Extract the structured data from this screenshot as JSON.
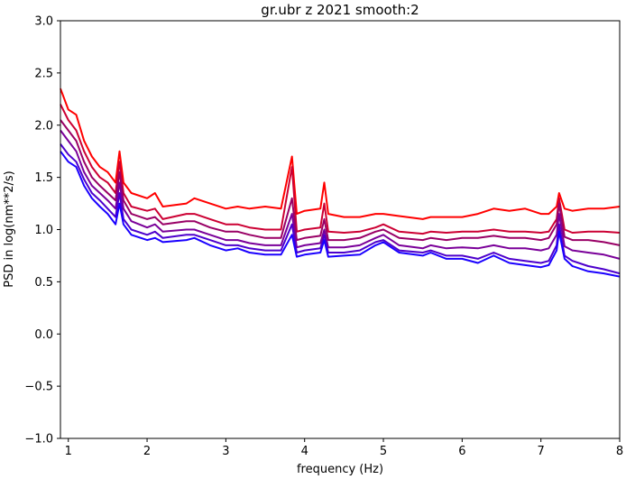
{
  "chart_data": {
    "type": "line",
    "title": "gr.ubr z 2021 smooth:2",
    "xlabel": "frequency (Hz)",
    "ylabel": "PSD in log(nm**2/s)",
    "xlim": [
      0.9,
      8.0
    ],
    "ylim": [
      -1.0,
      3.0
    ],
    "xticks": [
      1,
      2,
      3,
      4,
      5,
      6,
      7,
      8
    ],
    "yticks": [
      -1.0,
      -0.5,
      0.0,
      0.5,
      1.0,
      1.5,
      2.0,
      2.5,
      3.0
    ],
    "ytick_labels": [
      "−1.0",
      "−0.5",
      "0.0",
      "0.5",
      "1.0",
      "1.5",
      "2.0",
      "2.5",
      "3.0"
    ],
    "grid": false,
    "legend": "none",
    "series": [
      {
        "color": "#ff0000",
        "x": [
          0.9,
          1.0,
          1.1,
          1.2,
          1.3,
          1.4,
          1.5,
          1.6,
          1.65,
          1.7,
          1.8,
          2.0,
          2.1,
          2.2,
          2.5,
          2.6,
          2.8,
          3.0,
          3.15,
          3.3,
          3.5,
          3.7,
          3.84,
          3.9,
          4.0,
          4.2,
          4.25,
          4.3,
          4.5,
          4.7,
          4.9,
          5.0,
          5.2,
          5.5,
          5.6,
          5.8,
          6.0,
          6.2,
          6.4,
          6.6,
          6.8,
          7.0,
          7.1,
          7.2,
          7.23,
          7.3,
          7.4,
          7.6,
          7.8,
          8.0
        ],
        "y": [
          2.35,
          2.15,
          2.1,
          1.85,
          1.7,
          1.6,
          1.55,
          1.45,
          1.75,
          1.45,
          1.35,
          1.3,
          1.35,
          1.22,
          1.25,
          1.3,
          1.25,
          1.2,
          1.22,
          1.2,
          1.22,
          1.2,
          1.7,
          1.15,
          1.18,
          1.2,
          1.45,
          1.15,
          1.12,
          1.12,
          1.15,
          1.15,
          1.13,
          1.1,
          1.12,
          1.12,
          1.12,
          1.15,
          1.2,
          1.18,
          1.2,
          1.15,
          1.15,
          1.22,
          1.35,
          1.2,
          1.18,
          1.2,
          1.2,
          1.22
        ]
      },
      {
        "color": "#cc0033",
        "x": [
          0.9,
          1.0,
          1.1,
          1.2,
          1.3,
          1.4,
          1.5,
          1.6,
          1.65,
          1.7,
          1.8,
          2.0,
          2.1,
          2.2,
          2.5,
          2.6,
          2.8,
          3.0,
          3.15,
          3.3,
          3.5,
          3.7,
          3.84,
          3.9,
          4.0,
          4.2,
          4.25,
          4.3,
          4.5,
          4.7,
          4.9,
          5.0,
          5.2,
          5.5,
          5.6,
          5.8,
          6.0,
          6.2,
          6.4,
          6.6,
          6.8,
          7.0,
          7.1,
          7.2,
          7.23,
          7.3,
          7.4,
          7.6,
          7.8,
          8.0
        ],
        "y": [
          2.2,
          2.05,
          1.95,
          1.75,
          1.6,
          1.5,
          1.45,
          1.35,
          1.65,
          1.35,
          1.22,
          1.18,
          1.2,
          1.1,
          1.15,
          1.15,
          1.1,
          1.05,
          1.05,
          1.02,
          1.0,
          1.0,
          1.6,
          0.98,
          1.0,
          1.02,
          1.25,
          0.98,
          0.97,
          0.98,
          1.02,
          1.05,
          0.98,
          0.96,
          0.98,
          0.97,
          0.98,
          0.98,
          1.0,
          0.98,
          0.98,
          0.97,
          0.98,
          1.1,
          1.3,
          1.0,
          0.97,
          0.98,
          0.98,
          0.97
        ]
      },
      {
        "color": "#990066",
        "x": [
          0.9,
          1.0,
          1.1,
          1.2,
          1.3,
          1.4,
          1.5,
          1.6,
          1.65,
          1.7,
          1.8,
          2.0,
          2.1,
          2.2,
          2.5,
          2.6,
          2.8,
          3.0,
          3.15,
          3.3,
          3.5,
          3.7,
          3.84,
          3.9,
          4.0,
          4.2,
          4.25,
          4.3,
          4.5,
          4.7,
          4.9,
          5.0,
          5.2,
          5.5,
          5.6,
          5.8,
          6.0,
          6.2,
          6.4,
          6.6,
          6.8,
          7.0,
          7.1,
          7.2,
          7.23,
          7.3,
          7.4,
          7.6,
          7.8,
          8.0
        ],
        "y": [
          2.05,
          1.95,
          1.85,
          1.65,
          1.5,
          1.42,
          1.35,
          1.28,
          1.55,
          1.28,
          1.15,
          1.1,
          1.12,
          1.05,
          1.08,
          1.08,
          1.02,
          0.98,
          0.98,
          0.95,
          0.92,
          0.92,
          1.3,
          0.9,
          0.92,
          0.94,
          1.1,
          0.9,
          0.9,
          0.92,
          0.98,
          1.0,
          0.92,
          0.9,
          0.92,
          0.9,
          0.92,
          0.92,
          0.94,
          0.92,
          0.92,
          0.9,
          0.92,
          1.05,
          1.25,
          0.93,
          0.9,
          0.9,
          0.88,
          0.85
        ]
      },
      {
        "color": "#7a0099",
        "x": [
          0.9,
          1.0,
          1.1,
          1.2,
          1.3,
          1.4,
          1.5,
          1.6,
          1.65,
          1.7,
          1.8,
          2.0,
          2.1,
          2.2,
          2.5,
          2.6,
          2.8,
          3.0,
          3.15,
          3.3,
          3.5,
          3.7,
          3.84,
          3.9,
          4.0,
          4.2,
          4.25,
          4.3,
          4.5,
          4.7,
          4.9,
          5.0,
          5.2,
          5.5,
          5.6,
          5.8,
          6.0,
          6.2,
          6.4,
          6.6,
          6.8,
          7.0,
          7.1,
          7.2,
          7.23,
          7.3,
          7.4,
          7.6,
          7.8,
          8.0
        ],
        "y": [
          1.95,
          1.85,
          1.75,
          1.55,
          1.42,
          1.35,
          1.28,
          1.2,
          1.45,
          1.2,
          1.08,
          1.02,
          1.05,
          0.98,
          1.0,
          1.0,
          0.95,
          0.9,
          0.9,
          0.87,
          0.85,
          0.85,
          1.15,
          0.83,
          0.85,
          0.87,
          1.0,
          0.83,
          0.83,
          0.85,
          0.92,
          0.95,
          0.85,
          0.82,
          0.85,
          0.82,
          0.83,
          0.82,
          0.85,
          0.82,
          0.82,
          0.8,
          0.82,
          0.95,
          1.15,
          0.84,
          0.8,
          0.78,
          0.76,
          0.72
        ]
      },
      {
        "color": "#4d00cc",
        "x": [
          0.9,
          1.0,
          1.1,
          1.2,
          1.3,
          1.4,
          1.5,
          1.6,
          1.65,
          1.7,
          1.8,
          2.0,
          2.1,
          2.2,
          2.5,
          2.6,
          2.8,
          3.0,
          3.15,
          3.3,
          3.5,
          3.7,
          3.84,
          3.9,
          4.0,
          4.2,
          4.25,
          4.3,
          4.5,
          4.7,
          4.9,
          5.0,
          5.2,
          5.5,
          5.6,
          5.8,
          6.0,
          6.2,
          6.4,
          6.6,
          6.8,
          7.0,
          7.1,
          7.2,
          7.23,
          7.3,
          7.4,
          7.6,
          7.8,
          8.0
        ],
        "y": [
          1.82,
          1.72,
          1.65,
          1.48,
          1.35,
          1.28,
          1.2,
          1.12,
          1.35,
          1.1,
          1.0,
          0.95,
          0.98,
          0.92,
          0.95,
          0.95,
          0.9,
          0.85,
          0.85,
          0.82,
          0.8,
          0.8,
          1.05,
          0.78,
          0.8,
          0.82,
          0.95,
          0.78,
          0.78,
          0.8,
          0.88,
          0.9,
          0.8,
          0.78,
          0.8,
          0.75,
          0.75,
          0.72,
          0.78,
          0.72,
          0.7,
          0.68,
          0.7,
          0.85,
          1.05,
          0.75,
          0.7,
          0.65,
          0.62,
          0.58
        ]
      },
      {
        "color": "#1a00ff",
        "x": [
          0.9,
          1.0,
          1.1,
          1.2,
          1.3,
          1.4,
          1.5,
          1.6,
          1.65,
          1.7,
          1.8,
          2.0,
          2.1,
          2.2,
          2.5,
          2.6,
          2.8,
          3.0,
          3.15,
          3.3,
          3.5,
          3.7,
          3.84,
          3.9,
          4.0,
          4.2,
          4.25,
          4.3,
          4.5,
          4.7,
          4.9,
          5.0,
          5.2,
          5.5,
          5.6,
          5.8,
          6.0,
          6.2,
          6.4,
          6.6,
          6.8,
          7.0,
          7.1,
          7.2,
          7.23,
          7.3,
          7.4,
          7.6,
          7.8,
          8.0
        ],
        "y": [
          1.75,
          1.65,
          1.6,
          1.42,
          1.3,
          1.22,
          1.15,
          1.05,
          1.25,
          1.05,
          0.95,
          0.9,
          0.92,
          0.88,
          0.9,
          0.92,
          0.85,
          0.8,
          0.82,
          0.78,
          0.76,
          0.76,
          0.95,
          0.74,
          0.76,
          0.78,
          0.9,
          0.74,
          0.75,
          0.76,
          0.85,
          0.88,
          0.78,
          0.75,
          0.78,
          0.72,
          0.72,
          0.68,
          0.75,
          0.68,
          0.66,
          0.64,
          0.66,
          0.8,
          0.98,
          0.72,
          0.65,
          0.6,
          0.58,
          0.55
        ]
      }
    ]
  }
}
